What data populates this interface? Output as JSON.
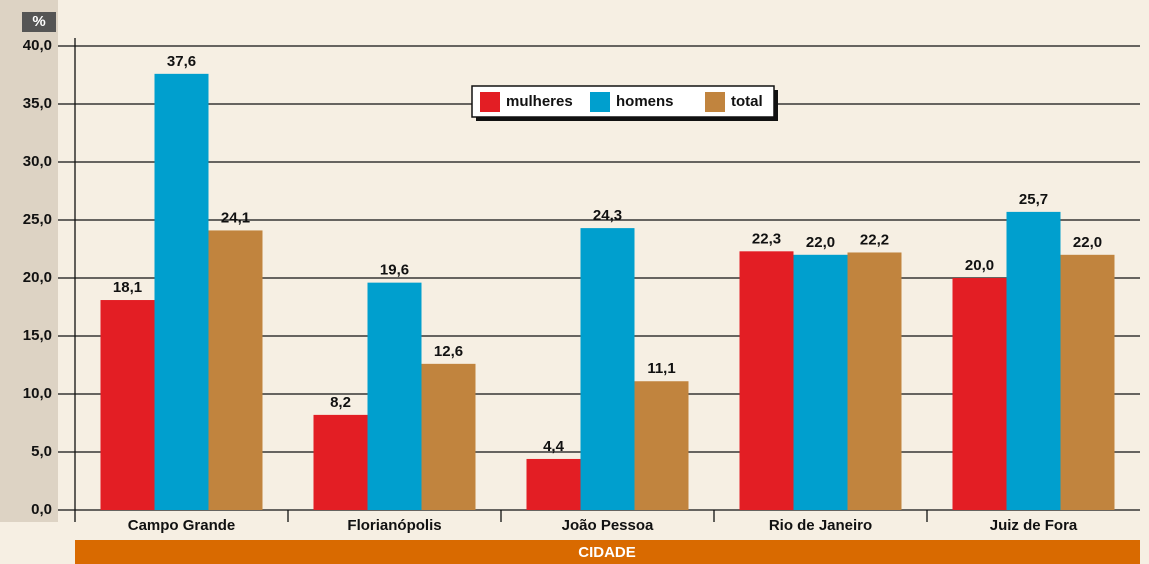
{
  "chart_data": {
    "type": "bar",
    "y_label": "%",
    "x_label": "CIDADE",
    "categories": [
      "Campo Grande",
      "Florianópolis",
      "João Pessoa",
      "Rio de Janeiro",
      "Juiz de Fora"
    ],
    "series": [
      {
        "name": "mulheres",
        "color": "#e31e24",
        "values": [
          18.1,
          8.2,
          4.4,
          22.3,
          20.0
        ],
        "value_labels": [
          "18,1",
          "8,2",
          "4,4",
          "22,3",
          "20,0"
        ]
      },
      {
        "name": "homens",
        "color": "#009fce",
        "values": [
          37.6,
          19.6,
          24.3,
          22.0,
          25.7
        ],
        "value_labels": [
          "37,6",
          "19,6",
          "24,3",
          "22,0",
          "25,7"
        ]
      },
      {
        "name": "total",
        "color": "#c1843e",
        "values": [
          24.1,
          12.6,
          11.1,
          22.2,
          22.0
        ],
        "value_labels": [
          "24,1",
          "12,6",
          "11,1",
          "22,2",
          "22,0"
        ]
      }
    ],
    "ylim": [
      0,
      40
    ],
    "yticks": [
      {
        "value": 0,
        "label": "0,0"
      },
      {
        "value": 5,
        "label": "5,0"
      },
      {
        "value": 10,
        "label": "10,0"
      },
      {
        "value": 15,
        "label": "15,0"
      },
      {
        "value": 20,
        "label": "20,0"
      },
      {
        "value": 25,
        "label": "25,0"
      },
      {
        "value": 30,
        "label": "30,0"
      },
      {
        "value": 35,
        "label": "35,0"
      },
      {
        "value": 40,
        "label": "40,0"
      }
    ],
    "grid": true,
    "legend": "top"
  }
}
